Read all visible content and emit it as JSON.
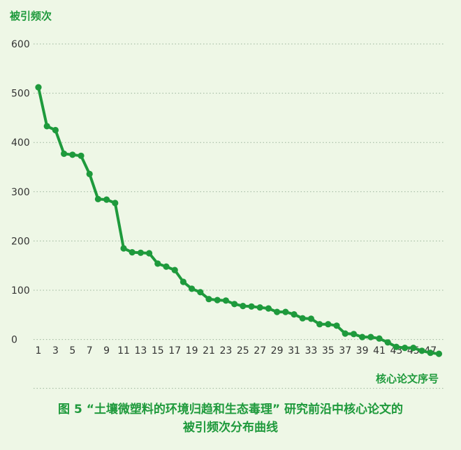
{
  "chart_data": {
    "type": "line",
    "ylabel": "被引频次",
    "xlabel": "核心论文序号",
    "y_tick_labels": [
      "600",
      "500",
      "400",
      "300",
      "200",
      "100",
      "0"
    ],
    "x_tick_labels": [
      "1",
      "3",
      "5",
      "7",
      "9",
      "11",
      "13",
      "15",
      "17",
      "19",
      "21",
      "23",
      "25",
      "27",
      "29",
      "31",
      "33",
      "35",
      "37",
      "39",
      "41",
      "43",
      "45",
      "47"
    ],
    "x": [
      1,
      2,
      3,
      4,
      5,
      6,
      7,
      8,
      9,
      10,
      11,
      12,
      13,
      14,
      15,
      16,
      17,
      18,
      19,
      20,
      21,
      22,
      23,
      24,
      25,
      26,
      27,
      28,
      29,
      30,
      31,
      32,
      33,
      34,
      35,
      36,
      37,
      38,
      39,
      40,
      41,
      42,
      43,
      44,
      45,
      46,
      47,
      48
    ],
    "values": [
      512,
      433,
      425,
      377,
      375,
      373,
      336,
      285,
      284,
      277,
      185,
      177,
      176,
      175,
      154,
      148,
      141,
      117,
      103,
      96,
      82,
      80,
      79,
      72,
      68,
      67,
      65,
      63,
      56,
      56,
      51,
      43,
      42,
      31,
      31,
      28,
      12,
      11,
      5,
      5,
      2,
      -6,
      -15,
      -17,
      -17,
      -23,
      -27,
      -29
    ],
    "ylim": [
      -100,
      600
    ],
    "grid": true,
    "line_color": "#1e9a3c",
    "grid_color": "#9bb49b",
    "text_color": "#1f9a3c"
  },
  "caption": {
    "line1": "图 5 “土壤微塑料的环境归趋和生态毒理” 研究前沿中核心论文的",
    "line2": "被引频次分布曲线"
  }
}
